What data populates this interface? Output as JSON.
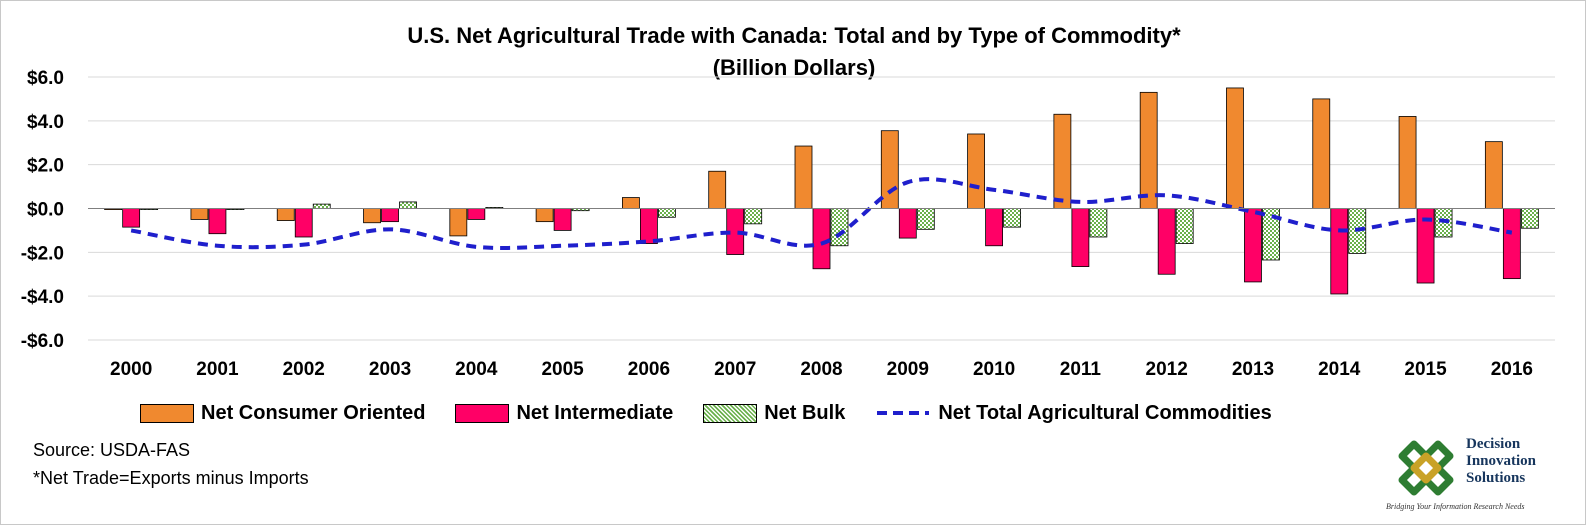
{
  "chart_data": {
    "type": "bar",
    "title": "U.S. Net Agricultural Trade with Canada: Total and by Type of Commodity*",
    "subtitle": "(Billion Dollars)",
    "categories": [
      "2000",
      "2001",
      "2002",
      "2003",
      "2004",
      "2005",
      "2006",
      "2007",
      "2008",
      "2009",
      "2010",
      "2011",
      "2012",
      "2013",
      "2014",
      "2015",
      "2016"
    ],
    "ylim": [
      -6,
      6
    ],
    "yticks": [
      "-$6.0",
      "-$4.0",
      "-$2.0",
      "$0.0",
      "$2.0",
      "$4.0",
      "$6.0"
    ],
    "grid": true,
    "legend_position": "bottom",
    "series": [
      {
        "name": "Net Consumer Oriented",
        "kind": "bar",
        "color": "#f0892f",
        "values": [
          -0.05,
          -0.5,
          -0.55,
          -0.65,
          -1.25,
          -0.6,
          0.5,
          1.7,
          2.85,
          3.55,
          3.4,
          4.3,
          5.3,
          5.5,
          5.0,
          4.2,
          3.05
        ]
      },
      {
        "name": "Net Intermediate",
        "kind": "bar",
        "color": "#ff0066",
        "values": [
          -0.85,
          -1.15,
          -1.3,
          -0.6,
          -0.5,
          -1.0,
          -1.6,
          -2.1,
          -2.75,
          -1.35,
          -1.7,
          -2.65,
          -3.0,
          -3.35,
          -3.9,
          -3.4,
          -3.2
        ]
      },
      {
        "name": "Net Bulk",
        "kind": "bar",
        "color": "#6ab04c",
        "pattern": "dotted",
        "values": [
          -0.05,
          -0.05,
          0.2,
          0.3,
          0.05,
          -0.1,
          -0.4,
          -0.7,
          -1.7,
          -0.95,
          -0.85,
          -1.3,
          -1.6,
          -2.35,
          -2.05,
          -1.3,
          -0.9
        ]
      },
      {
        "name": "Net Total Agricultural Commodities",
        "kind": "line",
        "color": "#1f1fcc",
        "dash": true,
        "values": [
          -1.0,
          -1.7,
          -1.65,
          -0.95,
          -1.75,
          -1.7,
          -1.5,
          -1.1,
          -1.6,
          1.2,
          0.85,
          0.3,
          0.6,
          -0.15,
          -1.0,
          -0.5,
          -1.1
        ]
      }
    ]
  },
  "footer": {
    "source": "Source: USDA-FAS",
    "note": "*Net Trade=Exports minus Imports"
  },
  "logo": {
    "line1": "Decision",
    "line2": "Innovation",
    "line3": "Solutions",
    "tagline": "Bridging Your Information Research Needs"
  }
}
